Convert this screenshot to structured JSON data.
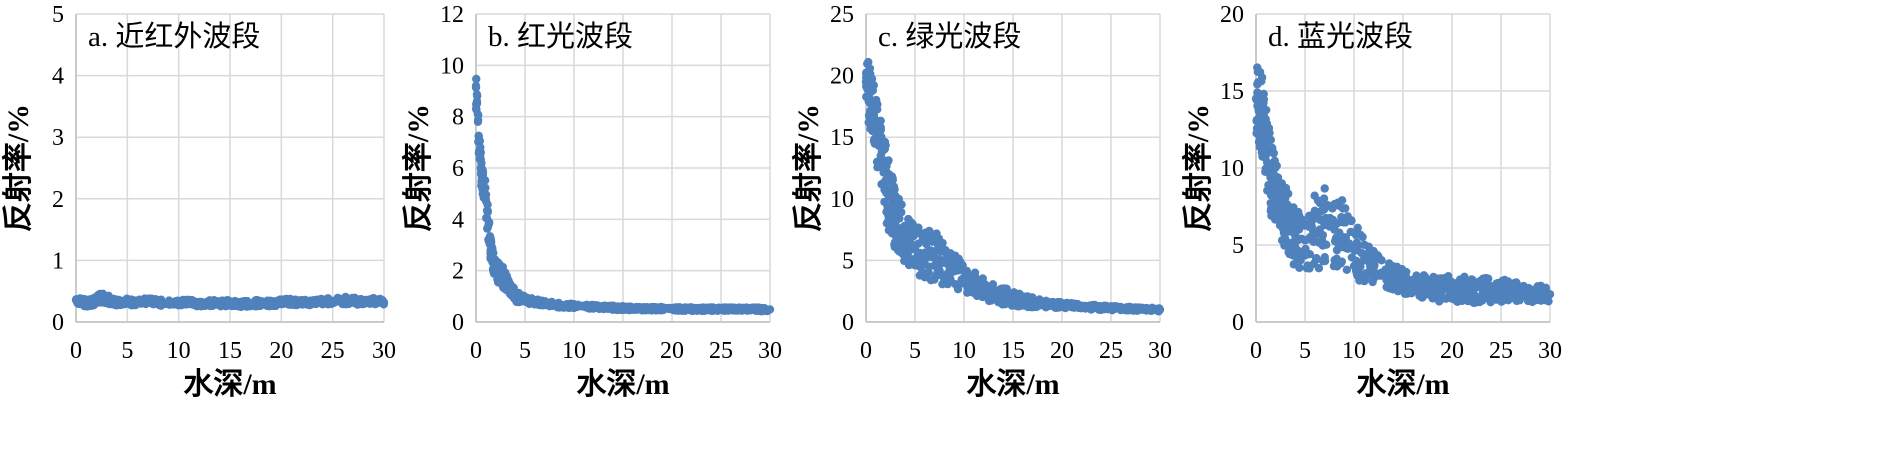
{
  "figure": {
    "marker_color": "#4f81bd",
    "grid_color": "#d9d9d9"
  },
  "chart_data": [
    {
      "type": "scatter",
      "title": "a. 近红外波段",
      "xlabel": "水深/m",
      "ylabel": "反射率/%",
      "xlim": [
        0,
        30
      ],
      "ylim": [
        0,
        5
      ],
      "xticks": [
        "0",
        "5",
        "10",
        "15",
        "20",
        "25",
        "30"
      ],
      "yticks": [
        "0",
        "1",
        "2",
        "3",
        "4",
        "5"
      ],
      "grid": true,
      "series": [
        {
          "x": [
            0,
            0.5,
            1,
            1.5,
            2,
            2.5,
            3,
            3.5,
            4,
            5,
            6,
            7,
            8,
            9,
            10,
            11,
            12,
            13,
            14,
            15,
            16,
            17,
            18,
            19,
            20,
            21,
            22,
            23,
            24,
            25,
            26,
            27,
            28,
            29,
            30
          ],
          "y": [
            0.36,
            0.33,
            0.3,
            0.32,
            0.35,
            0.4,
            0.37,
            0.34,
            0.32,
            0.33,
            0.31,
            0.34,
            0.32,
            0.3,
            0.31,
            0.32,
            0.3,
            0.31,
            0.3,
            0.31,
            0.29,
            0.3,
            0.31,
            0.3,
            0.32,
            0.33,
            0.31,
            0.32,
            0.33,
            0.34,
            0.35,
            0.34,
            0.33,
            0.34,
            0.32
          ],
          "spread": [
            0.05,
            0.06,
            0.06,
            0.06,
            0.07,
            0.08,
            0.07,
            0.06,
            0.05,
            0.05,
            0.05,
            0.05,
            0.05,
            0.05,
            0.05,
            0.05,
            0.05,
            0.05,
            0.05,
            0.05,
            0.05,
            0.05,
            0.05,
            0.05,
            0.05,
            0.05,
            0.05,
            0.05,
            0.05,
            0.05,
            0.06,
            0.06,
            0.05,
            0.05,
            0.05
          ]
        }
      ]
    },
    {
      "type": "scatter",
      "title": "b. 红光波段",
      "xlabel": "水深/m",
      "ylabel": "反射率/%",
      "xlim": [
        0,
        30
      ],
      "ylim": [
        0,
        12
      ],
      "xticks": [
        "0",
        "5",
        "10",
        "15",
        "20",
        "25",
        "30"
      ],
      "yticks": [
        "0",
        "2",
        "4",
        "6",
        "8",
        "10",
        "12"
      ],
      "grid": true,
      "series": [
        {
          "x": [
            0,
            0.1,
            0.2,
            0.3,
            0.4,
            0.5,
            0.6,
            0.8,
            1,
            1.5,
            2,
            2.5,
            3,
            3.5,
            4,
            5,
            6,
            7,
            8,
            9,
            10,
            12,
            14,
            16,
            18,
            20,
            22,
            24,
            26,
            28,
            30
          ],
          "y": [
            9.2,
            8.6,
            7.8,
            7.1,
            6.5,
            6,
            5.6,
            5.2,
            4.8,
            2.8,
            2,
            1.9,
            1.6,
            1.2,
            1,
            0.85,
            0.78,
            0.72,
            0.68,
            0.65,
            0.62,
            0.58,
            0.55,
            0.53,
            0.52,
            0.51,
            0.5,
            0.5,
            0.5,
            0.5,
            0.49
          ],
          "spread": [
            0.8,
            0.8,
            0.8,
            0.7,
            0.7,
            0.7,
            0.6,
            0.6,
            0.6,
            0.5,
            0.4,
            0.4,
            0.4,
            0.3,
            0.25,
            0.15,
            0.12,
            0.1,
            0.1,
            0.1,
            0.08,
            0.08,
            0.08,
            0.07,
            0.07,
            0.07,
            0.07,
            0.07,
            0.07,
            0.07,
            0.07
          ]
        }
      ]
    },
    {
      "type": "scatter",
      "title": "c. 绿光波段",
      "xlabel": "水深/m",
      "ylabel": "反射率/%",
      "xlim": [
        0,
        30
      ],
      "ylim": [
        0,
        25
      ],
      "xticks": [
        "0",
        "5",
        "10",
        "15",
        "20",
        "25",
        "30"
      ],
      "yticks": [
        "0",
        "5",
        "10",
        "15",
        "20",
        "25"
      ],
      "grid": true,
      "series": [
        {
          "x": [
            0,
            0.3,
            0.6,
            1,
            1.5,
            2,
            2.5,
            3,
            3.5,
            4,
            4.5,
            5,
            5.5,
            6,
            6.5,
            7,
            7.5,
            8,
            8.5,
            9,
            10,
            11,
            12,
            13,
            14,
            15,
            16,
            18,
            20,
            22,
            24,
            26,
            28,
            30
          ],
          "y": [
            19.5,
            18.5,
            17.5,
            16,
            13.5,
            11.5,
            9.5,
            8.5,
            7.5,
            6.8,
            6.3,
            5.9,
            5.6,
            5.5,
            5.4,
            5.3,
            5.1,
            4.8,
            4.5,
            4.2,
            3.6,
            3.1,
            2.7,
            2.3,
            2.1,
            1.9,
            1.7,
            1.5,
            1.35,
            1.25,
            1.15,
            1.1,
            1.05,
            1
          ],
          "spread": [
            2.5,
            2.5,
            2.5,
            2.5,
            3,
            3,
            3,
            2.8,
            2.5,
            2.2,
            2,
            2,
            2,
            2,
            2,
            2,
            2,
            1.8,
            1.6,
            1.5,
            1.2,
            1,
            0.9,
            0.8,
            0.7,
            0.6,
            0.5,
            0.3,
            0.25,
            0.2,
            0.2,
            0.15,
            0.15,
            0.15
          ]
        }
      ]
    },
    {
      "type": "scatter",
      "title": "d. 蓝光波段",
      "xlabel": "水深/m",
      "ylabel": "反射率/%",
      "xlim": [
        0,
        30
      ],
      "ylim": [
        0,
        20
      ],
      "xticks": [
        "0",
        "5",
        "10",
        "15",
        "20",
        "25",
        "30"
      ],
      "yticks": [
        "0",
        "5",
        "10",
        "15",
        "20"
      ],
      "grid": true,
      "series": [
        {
          "x": [
            0,
            0.3,
            0.6,
            1,
            1.5,
            2,
            2.5,
            3,
            3.5,
            4,
            4.5,
            5,
            5.5,
            6,
            6.5,
            7,
            7.5,
            8,
            8.5,
            9,
            9.5,
            10,
            11,
            12,
            13,
            14,
            15,
            16,
            18,
            20,
            22,
            24,
            26,
            28,
            30
          ],
          "y": [
            14.5,
            14,
            13.5,
            11.5,
            9.5,
            8.5,
            7.5,
            6.8,
            6,
            5.6,
            5.4,
            5.3,
            5.5,
            5.8,
            6,
            6.3,
            6.2,
            6,
            5.8,
            5.5,
            5.1,
            4.7,
            4,
            3.5,
            3.1,
            2.8,
            2.6,
            2.4,
            2.2,
            2.1,
            2.1,
            2.05,
            2,
            1.9,
            1.8
          ],
          "spread": [
            2.5,
            2.5,
            2.5,
            2.5,
            2.5,
            2.2,
            2,
            2,
            2,
            2,
            2,
            2,
            2.2,
            2.5,
            2.5,
            2.5,
            2.5,
            2.5,
            2.4,
            2.2,
            2,
            1.8,
            1.5,
            1.2,
            1,
            0.9,
            0.8,
            0.7,
            0.8,
            0.9,
            0.9,
            0.8,
            0.7,
            0.6,
            0.5
          ]
        }
      ]
    }
  ]
}
